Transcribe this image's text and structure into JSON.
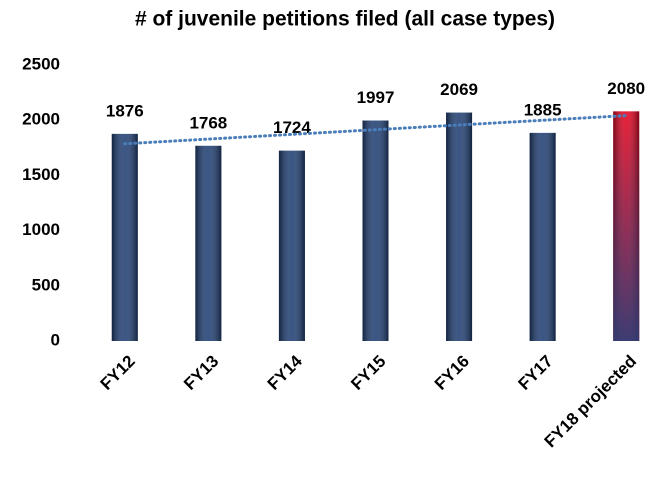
{
  "chart_data": {
    "type": "bar",
    "title": "# of juvenile petitions filed (all case types)",
    "categories": [
      "FY12",
      "FY13",
      "FY14",
      "FY15",
      "FY16",
      "FY17",
      "FY18 projected"
    ],
    "values": [
      1876,
      1768,
      1724,
      1997,
      2069,
      1885,
      2080
    ],
    "colors": [
      "#1f3e73",
      "#1f3e73",
      "#1f3e73",
      "#1f3e73",
      "#1f3e73",
      "#1f3e73",
      "#e8001c"
    ],
    "ylim": [
      0,
      2500
    ],
    "yticks": [
      0,
      500,
      1000,
      1500,
      2000,
      2500
    ],
    "grid": false,
    "trendline": true,
    "trendline_color": "#4a7ebb"
  }
}
